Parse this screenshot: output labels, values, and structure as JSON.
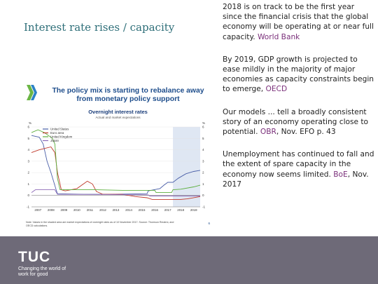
{
  "slide": {
    "title": "Interest rate rises / capacity"
  },
  "quotes": [
    {
      "text": "2018 is on track to be the first year since the financial crisis that the global economy will be operating at or near full capacity. ",
      "source": "World Bank"
    },
    {
      "text": "By 2019, GDP growth is projected to ease mildly in the majority of major economies as capacity constraints begin to emerge, ",
      "source": "OECD"
    },
    {
      "text": "Our models ... tell a broadly consistent story of an economy operating close to potential. ",
      "source": "OBR",
      "suffix": ", Nov. EFO p. 43"
    },
    {
      "text": "Unemployment has continued to fall and the extent of spare capacity in the economy now seems limited. ",
      "source": "BoE",
      "suffix": ", Nov. 2017"
    }
  ],
  "chart_panel": {
    "title": "The policy mix is starting to rebalance away from monetary policy support",
    "subtitle": "Overnight interest rates",
    "subtitle2": "Actual and market expectations",
    "note": "Note: Values in the shaded area are market expectations of overnight rates as of 10 November 2017. Source: Thomson Reuters; and OECD calculations.",
    "page_number": "6",
    "colors": {
      "united_states": "#4a5fa8",
      "euro_area": "#c0392b",
      "united_kingdom": "#5cae3c",
      "japan": "#8e6bb8"
    }
  },
  "chart_data": {
    "type": "line",
    "title": "Overnight interest rates",
    "xlabel": "",
    "ylabel": "%",
    "ylim": [
      -1,
      6
    ],
    "xlim": [
      2007,
      2020
    ],
    "x_ticks": [
      "2007",
      "2008",
      "2009",
      "2010",
      "2011",
      "2012",
      "2013",
      "2014",
      "2015",
      "2016",
      "2017",
      "2018",
      "2019"
    ],
    "y_ticks": [
      "-1",
      "0",
      "1",
      "2",
      "3",
      "4",
      "5",
      "6"
    ],
    "y_ticks_right": [
      "%",
      "-1",
      "0",
      "1",
      "2",
      "3",
      "4",
      "5",
      "6"
    ],
    "shaded_from": 2017.9,
    "legend_position": "top-left",
    "series": [
      {
        "name": "United States",
        "points": [
          [
            2007,
            5.25
          ],
          [
            2007.6,
            5.1
          ],
          [
            2007.9,
            4.5
          ],
          [
            2008.2,
            3.0
          ],
          [
            2008.5,
            2.0
          ],
          [
            2008.9,
            0.5
          ],
          [
            2009,
            0.15
          ],
          [
            2011,
            0.1
          ],
          [
            2013,
            0.1
          ],
          [
            2015.9,
            0.15
          ],
          [
            2016.0,
            0.4
          ],
          [
            2016.9,
            0.6
          ],
          [
            2017.2,
            0.9
          ],
          [
            2017.5,
            1.15
          ],
          [
            2017.9,
            1.15
          ],
          [
            2018.3,
            1.5
          ],
          [
            2018.9,
            1.9
          ],
          [
            2019.5,
            2.1
          ],
          [
            2020,
            2.2
          ]
        ]
      },
      {
        "name": "Euro area",
        "points": [
          [
            2007,
            3.75
          ],
          [
            2007.6,
            4.0
          ],
          [
            2008.5,
            4.25
          ],
          [
            2008.8,
            3.75
          ],
          [
            2009,
            2.0
          ],
          [
            2009.3,
            0.5
          ],
          [
            2009.6,
            0.4
          ],
          [
            2010.5,
            0.6
          ],
          [
            2011.3,
            1.25
          ],
          [
            2011.7,
            1.0
          ],
          [
            2012,
            0.35
          ],
          [
            2012.5,
            0.1
          ],
          [
            2013,
            0.1
          ],
          [
            2014,
            0.1
          ],
          [
            2014.5,
            0.0
          ],
          [
            2015,
            -0.1
          ],
          [
            2015.9,
            -0.2
          ],
          [
            2016.3,
            -0.35
          ],
          [
            2017.9,
            -0.35
          ],
          [
            2018.5,
            -0.35
          ],
          [
            2019,
            -0.3
          ],
          [
            2020,
            -0.1
          ]
        ]
      },
      {
        "name": "United Kingdom",
        "points": [
          [
            2007,
            5.5
          ],
          [
            2007.5,
            5.75
          ],
          [
            2008,
            5.5
          ],
          [
            2008.6,
            5.0
          ],
          [
            2008.8,
            4.5
          ],
          [
            2009,
            1.5
          ],
          [
            2009.2,
            0.5
          ],
          [
            2012,
            0.5
          ],
          [
            2014,
            0.45
          ],
          [
            2016.5,
            0.45
          ],
          [
            2016.6,
            0.25
          ],
          [
            2017.8,
            0.25
          ],
          [
            2017.9,
            0.5
          ],
          [
            2018.5,
            0.55
          ],
          [
            2019.5,
            0.75
          ],
          [
            2020,
            0.9
          ]
        ]
      },
      {
        "name": "Japan",
        "points": [
          [
            2007,
            0.25
          ],
          [
            2007.3,
            0.5
          ],
          [
            2008.8,
            0.5
          ],
          [
            2009,
            0.1
          ],
          [
            2013,
            0.08
          ],
          [
            2016,
            0.05
          ],
          [
            2016.1,
            -0.05
          ],
          [
            2017.9,
            -0.05
          ],
          [
            2020,
            -0.05
          ]
        ]
      }
    ]
  }
}
